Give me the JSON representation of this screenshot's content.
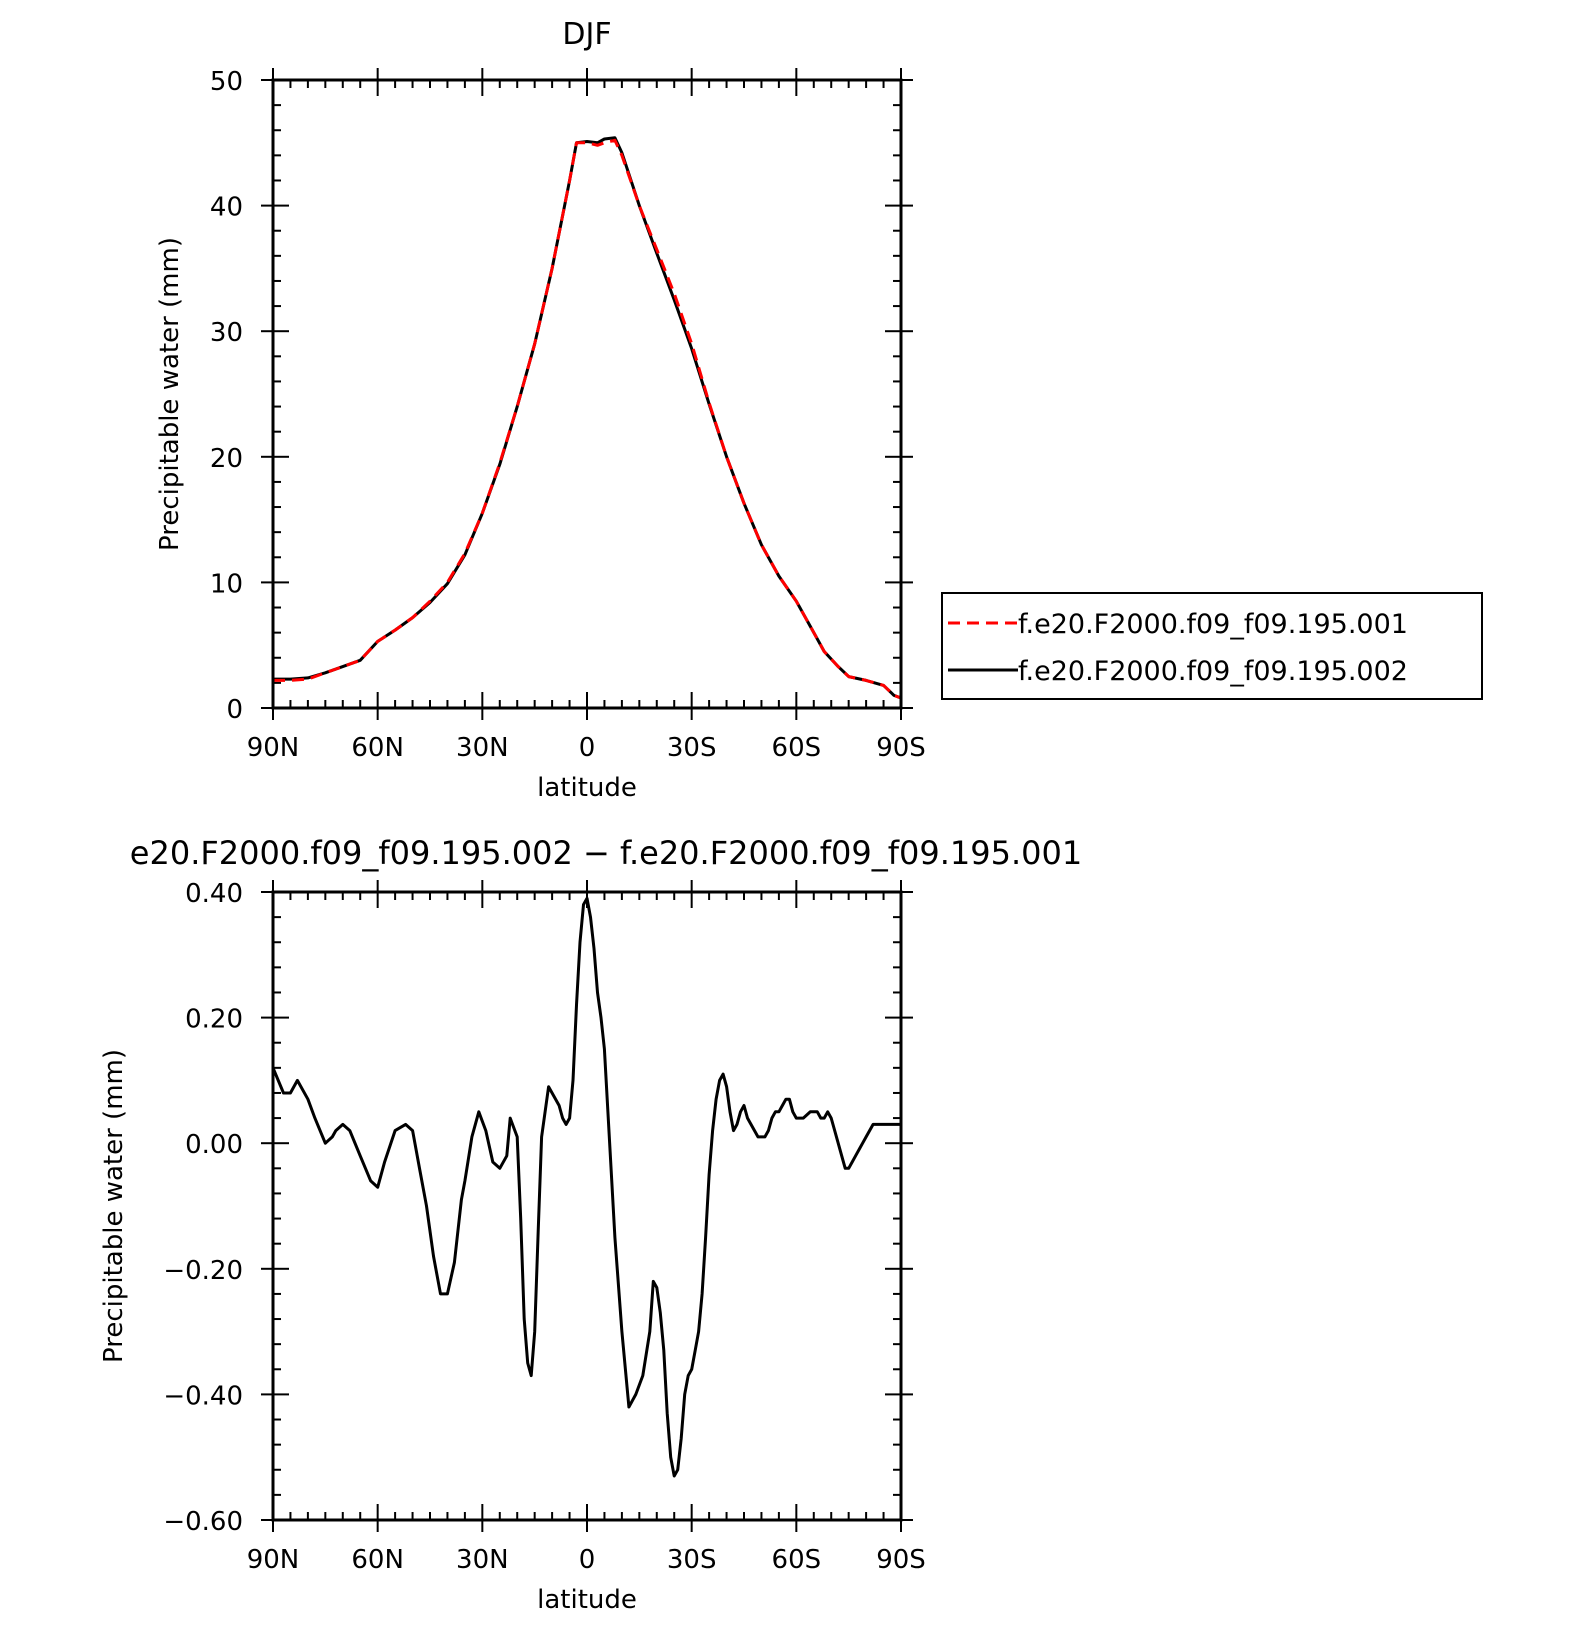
{
  "chart_data": [
    {
      "type": "line",
      "title": "DJF",
      "xlabel": "latitude",
      "ylabel": "Precipitable water (mm)",
      "xlim": [
        90,
        -90
      ],
      "ylim": [
        0,
        50
      ],
      "xticks": [
        90,
        60,
        30,
        0,
        -30,
        -60,
        -90
      ],
      "xtick_labels": [
        "90N",
        "60N",
        "30N",
        "0",
        "30S",
        "60S",
        "90S"
      ],
      "yticks": [
        0,
        10,
        20,
        30,
        40,
        50
      ],
      "ytick_labels": [
        "0",
        "10",
        "20",
        "30",
        "40",
        "50"
      ],
      "legend_position": "right",
      "series": [
        {
          "name": "f.e20.F2000.f09_f09.195.001",
          "color": "#ff0000",
          "dash": "dashed",
          "x": [
            90,
            85,
            80,
            75,
            70,
            65,
            60,
            55,
            50,
            45,
            40,
            35,
            30,
            25,
            20,
            15,
            10,
            5,
            3,
            0,
            -3,
            -5,
            -8,
            -10,
            -15,
            -20,
            -25,
            -30,
            -35,
            -40,
            -45,
            -50,
            -55,
            -60,
            -65,
            -68,
            -72,
            -75,
            -80,
            -85,
            -88,
            -90
          ],
          "y": [
            2.2,
            2.2,
            2.3,
            2.8,
            3.3,
            3.8,
            5.3,
            6.2,
            7.2,
            8.5,
            10.0,
            12.3,
            15.5,
            19.5,
            24.0,
            29.0,
            35.0,
            42.0,
            45.0,
            45.0,
            44.8,
            45.0,
            45.2,
            44.0,
            40.0,
            36.5,
            33.0,
            29.0,
            24.3,
            20.0,
            16.3,
            13.0,
            10.5,
            8.5,
            6.0,
            4.5,
            3.3,
            2.5,
            2.2,
            1.8,
            1.0,
            0.8
          ]
        },
        {
          "name": "f.e20.F2000.f09_f09.195.002",
          "color": "#000000",
          "dash": "solid",
          "x": [
            90,
            85,
            80,
            75,
            70,
            65,
            60,
            55,
            50,
            45,
            40,
            35,
            30,
            25,
            20,
            15,
            10,
            5,
            3,
            0,
            -3,
            -5,
            -8,
            -10,
            -15,
            -20,
            -25,
            -30,
            -35,
            -40,
            -45,
            -50,
            -55,
            -60,
            -65,
            -68,
            -72,
            -75,
            -80,
            -85,
            -88,
            -90
          ],
          "y": [
            2.3,
            2.3,
            2.4,
            2.8,
            3.3,
            3.8,
            5.3,
            6.2,
            7.2,
            8.4,
            9.9,
            12.2,
            15.5,
            19.4,
            24.0,
            29.0,
            35.0,
            42.0,
            45.0,
            45.1,
            45.0,
            45.3,
            45.4,
            44.2,
            40.0,
            36.2,
            32.5,
            28.6,
            24.2,
            20.0,
            16.3,
            13.0,
            10.5,
            8.5,
            6.0,
            4.5,
            3.3,
            2.5,
            2.2,
            1.8,
            1.0,
            0.8
          ]
        }
      ]
    },
    {
      "type": "line",
      "title": "e20.F2000.f09_f09.195.002 − f.e20.F2000.f09_f09.195.001",
      "xlabel": "latitude",
      "ylabel": "Precipitable water (mm)",
      "xlim": [
        90,
        -90
      ],
      "ylim": [
        -0.6,
        0.4
      ],
      "xticks": [
        90,
        60,
        30,
        0,
        -30,
        -60,
        -90
      ],
      "xtick_labels": [
        "90N",
        "60N",
        "30N",
        "0",
        "30S",
        "60S",
        "90S"
      ],
      "yticks": [
        0.4,
        0.2,
        0.0,
        -0.2,
        -0.4,
        -0.6
      ],
      "ytick_labels": [
        "0.40",
        "0.20",
        "0.00",
        "−0.20",
        "−0.40",
        "−0.60"
      ],
      "series": [
        {
          "color": "#000000",
          "dash": "solid",
          "x": [
            90,
            87,
            85,
            83,
            80,
            78,
            75,
            73,
            72,
            70,
            68,
            65,
            62,
            60,
            58,
            55,
            52,
            50,
            48,
            46,
            44,
            42,
            40,
            38,
            36,
            35,
            33,
            31,
            29,
            27,
            25,
            23,
            22,
            20,
            19,
            18,
            17,
            16,
            15,
            14,
            13,
            11,
            10,
            8,
            7,
            6,
            5,
            4,
            3,
            2,
            1,
            0,
            -1,
            -2,
            -3,
            -4,
            -5,
            -6,
            -7,
            -8,
            -10,
            -12,
            -14,
            -16,
            -18,
            -19,
            -20,
            -21,
            -22,
            -23,
            -24,
            -25,
            -26,
            -27,
            -28,
            -29,
            -30,
            -31,
            -32,
            -33,
            -34,
            -35,
            -36,
            -37,
            -38,
            -39,
            -40,
            -41,
            -42,
            -43,
            -44,
            -45,
            -46,
            -47,
            -48,
            -49,
            -50,
            -51,
            -52,
            -53,
            -54,
            -55,
            -56,
            -57,
            -58,
            -59,
            -60,
            -62,
            -64,
            -66,
            -67,
            -68,
            -69,
            -70,
            -71,
            -72,
            -73,
            -74,
            -75,
            -76,
            -77,
            -78,
            -79,
            -80,
            -81,
            -82,
            -83,
            -84,
            -85,
            -87,
            -89,
            -90
          ],
          "y": [
            0.12,
            0.08,
            0.08,
            0.1,
            0.07,
            0.04,
            0.0,
            0.01,
            0.02,
            0.03,
            0.02,
            -0.02,
            -0.06,
            -0.07,
            -0.03,
            0.02,
            0.03,
            0.02,
            -0.04,
            -0.1,
            -0.18,
            -0.24,
            -0.24,
            -0.19,
            -0.09,
            -0.06,
            0.01,
            0.05,
            0.02,
            -0.03,
            -0.04,
            -0.02,
            0.04,
            0.01,
            -0.12,
            -0.28,
            -0.35,
            -0.37,
            -0.3,
            -0.14,
            0.01,
            0.09,
            0.08,
            0.06,
            0.04,
            0.03,
            0.04,
            0.1,
            0.22,
            0.32,
            0.38,
            0.39,
            0.36,
            0.31,
            0.24,
            0.2,
            0.15,
            0.05,
            -0.05,
            -0.15,
            -0.3,
            -0.42,
            -0.4,
            -0.37,
            -0.3,
            -0.22,
            -0.23,
            -0.27,
            -0.33,
            -0.43,
            -0.5,
            -0.53,
            -0.52,
            -0.47,
            -0.4,
            -0.37,
            -0.36,
            -0.33,
            -0.3,
            -0.24,
            -0.15,
            -0.05,
            0.02,
            0.07,
            0.1,
            0.11,
            0.09,
            0.05,
            0.02,
            0.03,
            0.05,
            0.06,
            0.04,
            0.03,
            0.02,
            0.01,
            0.01,
            0.01,
            0.02,
            0.04,
            0.05,
            0.05,
            0.06,
            0.07,
            0.07,
            0.05,
            0.04,
            0.04,
            0.05,
            0.05,
            0.04,
            0.04,
            0.05,
            0.04,
            0.02,
            0.0,
            -0.02,
            -0.04,
            -0.04,
            -0.03,
            -0.02,
            -0.01,
            0.0,
            0.01,
            0.02,
            0.03,
            0.03,
            0.03,
            0.03,
            0.03,
            0.03,
            0.03
          ]
        }
      ]
    }
  ]
}
